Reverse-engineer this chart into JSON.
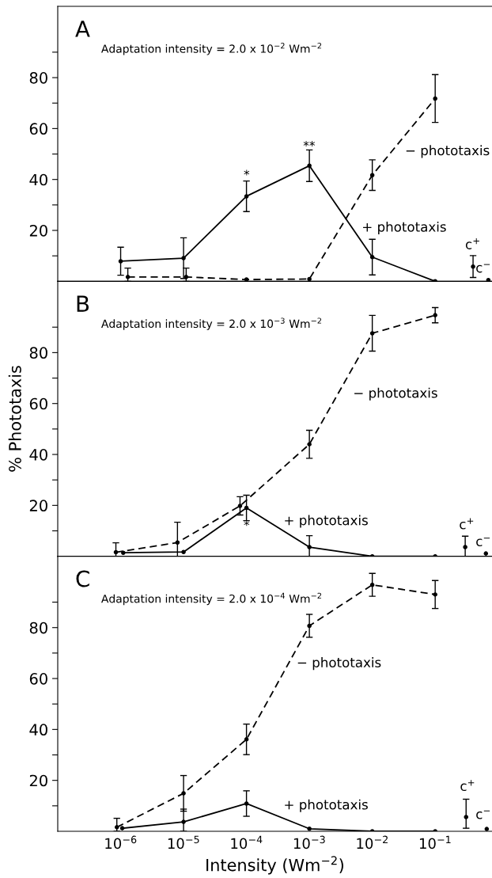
{
  "chart_data": [
    {
      "type": "line",
      "title": "A",
      "subtitle": "Adaptation intensity = 2.0 x 10$^{−2}$ Wm$^{−2}$",
      "log": "x",
      "marker": "circle",
      "tick_labels": "y",
      "grid": false,
      "legend": false,
      "xlim": [
        1e-07,
        0.8
      ],
      "xticks": [
        {
          "value": 1e-06,
          "label": null
        },
        {
          "value": 1e-05,
          "label": null
        },
        {
          "value": 0.0001,
          "label": null
        },
        {
          "value": 0.001,
          "label": null
        },
        {
          "value": 0.01,
          "label": null
        },
        {
          "value": 0.1,
          "label": null
        }
      ],
      "ylim": [
        0,
        108
      ],
      "yticks": [
        {
          "value": 10,
          "label": null
        },
        20,
        {
          "value": 30,
          "label": null
        },
        40,
        {
          "value": 50,
          "label": null
        },
        60,
        {
          "value": 70,
          "label": null
        },
        80,
        {
          "value": 90,
          "label": null
        }
      ],
      "series": [
        {
          "type": "line",
          "line_style": "solid",
          "color": "#000000",
          "x": [
            1e-06,
            1e-05,
            0.0001,
            0.001,
            0.01,
            0.1
          ],
          "values": [
            7.9,
            9.1,
            33.4,
            45.4,
            9.5,
            0
          ],
          "errors": [
            5.5,
            8,
            6,
            6.2,
            7,
            null
          ]
        },
        {
          "type": "line",
          "line_style": "dashed",
          "color": "#000000",
          "x": [
            1.3e-06,
            1.1e-05,
            0.0001,
            0.001,
            0.01,
            0.1
          ],
          "values": [
            1.7,
            1.7,
            0.7,
            0.9,
            41.7,
            71.8
          ],
          "errors": [
            [
              0,
              5.2
            ],
            [
              0,
              5.2
            ],
            null,
            null,
            6,
            9.4
          ]
        },
        {
          "type": "scatter",
          "color": "#000000",
          "x": [
            0.4,
            0.7
          ],
          "values": [
            5.8,
            0.5
          ],
          "errors": [
            4.3,
            null
          ]
        }
      ],
      "annotations": [
        "*",
        "**",
        "− phototaxis",
        "+ phototaxis",
        "c$^{+}$",
        "c$^{−}$"
      ]
    },
    {
      "type": "line",
      "title": "B",
      "subtitle": "Adaptation intensity = 2.0 x 10$^{−3}$ Wm$^{−2}$",
      "ylabel": "% Phototaxis",
      "log": "x",
      "marker": "circle",
      "tick_labels": "y",
      "grid": false,
      "legend": false,
      "xlim": [
        1e-07,
        0.8
      ],
      "xticks": [
        {
          "value": 1e-06,
          "label": null
        },
        {
          "value": 1e-05,
          "label": null
        },
        {
          "value": 0.0001,
          "label": null
        },
        {
          "value": 0.001,
          "label": null
        },
        {
          "value": 0.01,
          "label": null
        },
        {
          "value": 0.1,
          "label": null
        }
      ],
      "ylim": [
        0,
        108
      ],
      "yticks": [
        {
          "value": 10,
          "label": null
        },
        20,
        {
          "value": 30,
          "label": null
        },
        40,
        {
          "value": 50,
          "label": null
        },
        60,
        {
          "value": 70,
          "label": null
        },
        80,
        {
          "value": 90,
          "label": null
        }
      ],
      "series": [
        {
          "type": "line",
          "line_style": "solid",
          "color": "#000000",
          "x": [
            1.1e-06,
            1e-05,
            0.0001,
            0.001,
            0.01,
            0.1
          ],
          "values": [
            1.4,
            1.7,
            19,
            3.6,
            0,
            0
          ],
          "errors": [
            null,
            null,
            5,
            [
              0,
              8.1
            ],
            null,
            null
          ]
        },
        {
          "type": "line",
          "line_style": "dashed",
          "color": "#000000",
          "x": [
            8.4e-07,
            8e-06,
            7.9e-05,
            0.001,
            0.01,
            0.1
          ],
          "values": [
            1.6,
            5.4,
            19.8,
            44,
            87.6,
            94.7
          ],
          "errors": [
            [
              0,
              5.3
            ],
            8,
            3.6,
            5.5,
            7,
            3
          ]
        },
        {
          "type": "scatter",
          "color": "#000000",
          "x": [
            0.3,
            0.64
          ],
          "values": [
            3.6,
            1.1
          ],
          "errors": [
            [
              0,
              7.9
            ],
            null
          ]
        }
      ],
      "annotations": [
        "*",
        "− phototaxis",
        "+ phototaxis",
        "c$^{+}$",
        "c$^{−}$"
      ]
    },
    {
      "type": "line",
      "title": "C",
      "subtitle": "Adaptation intensity = 2.0 x 10$^{−4}$ Wm$^{−2}$",
      "xlabel": "Intensity (Wm$^{−2}$)",
      "log": "x",
      "marker": "circle",
      "grid": false,
      "legend": false,
      "xlim": [
        1e-07,
        0.8
      ],
      "xticks": [
        {
          "value": 1e-06,
          "label": "10$^{−6}$"
        },
        {
          "value": 1e-05,
          "label": "10$^{−5}$"
        },
        {
          "value": 0.0001,
          "label": "10$^{−4}$"
        },
        {
          "value": 0.001,
          "label": "10$^{−3}$"
        },
        {
          "value": 0.01,
          "label": "10$^{−2}$"
        },
        {
          "value": 0.1,
          "label": "10$^{−1}$"
        }
      ],
      "ylim": [
        0,
        108
      ],
      "yticks": [
        {
          "value": 10,
          "label": null
        },
        20,
        {
          "value": 30,
          "label": null
        },
        40,
        {
          "value": 50,
          "label": null
        },
        60,
        {
          "value": 70,
          "label": null
        },
        80,
        {
          "value": 90,
          "label": null
        }
      ],
      "series": [
        {
          "type": "line",
          "line_style": "solid",
          "color": "#000000",
          "x": [
            1.06e-06,
            1e-05,
            0.0001,
            0.001,
            0.01,
            0.1
          ],
          "values": [
            1.2,
            3.7,
            10.9,
            1,
            0,
            0
          ],
          "errors": [
            null,
            [
              0,
              8.7
            ],
            5,
            null,
            null,
            null
          ]
        },
        {
          "type": "line",
          "line_style": "dashed",
          "color": "#000000",
          "x": [
            8.7e-07,
            1e-05,
            0.0001,
            0.001,
            0.01,
            0.1
          ],
          "values": [
            1.6,
            14.9,
            36.1,
            80.7,
            96.8,
            93
          ],
          "errors": [
            [
              0,
              5.1
            ],
            7,
            6,
            4.5,
            4.5,
            5.5
          ]
        },
        {
          "type": "scatter",
          "color": "#000000",
          "x": [
            0.31,
            0.66
          ],
          "values": [
            5.6,
            0.9
          ],
          "errors": [
            [
              1.2,
              12.6
            ],
            null
          ]
        }
      ],
      "annotations": [
        "− phototaxis",
        "+ phototaxis",
        "c$^{+}$",
        "c$^{−}$"
      ]
    }
  ]
}
